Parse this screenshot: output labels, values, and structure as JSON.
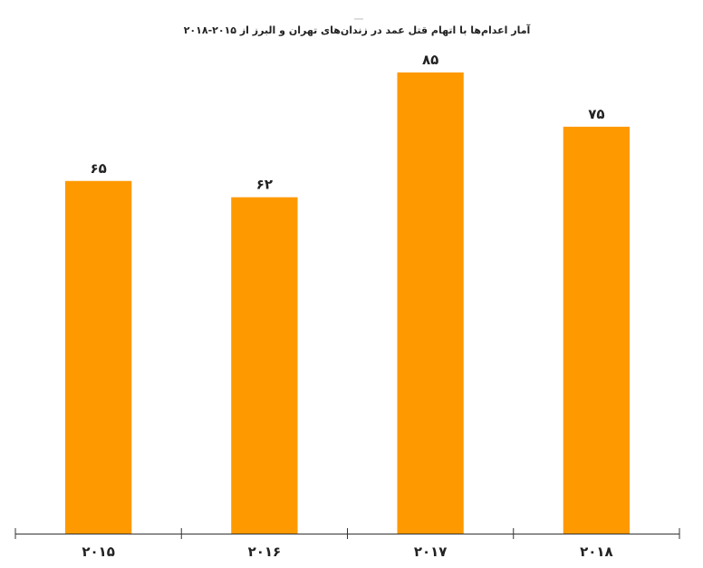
{
  "chart_data": {
    "type": "bar",
    "title": "آمار اعدام‌ها با اتهام قتل عمد در زندان‌های تهران و البرز از ۲۰۱۵-۲۰۱۸",
    "categories": [
      "۲۰۱۵",
      "۲۰۱۶",
      "۲۰۱۷",
      "۲۰۱۸"
    ],
    "values": [
      65,
      62,
      85,
      75
    ],
    "value_labels": [
      "۶۵",
      "۶۲",
      "۸۵",
      "۷۵"
    ],
    "xlabel": "",
    "ylabel": "",
    "ylim": [
      0,
      85
    ],
    "grid": false,
    "legend": "none",
    "colors": {
      "bar": "#ff9900",
      "axis": "#333333",
      "text": "#222222"
    }
  }
}
